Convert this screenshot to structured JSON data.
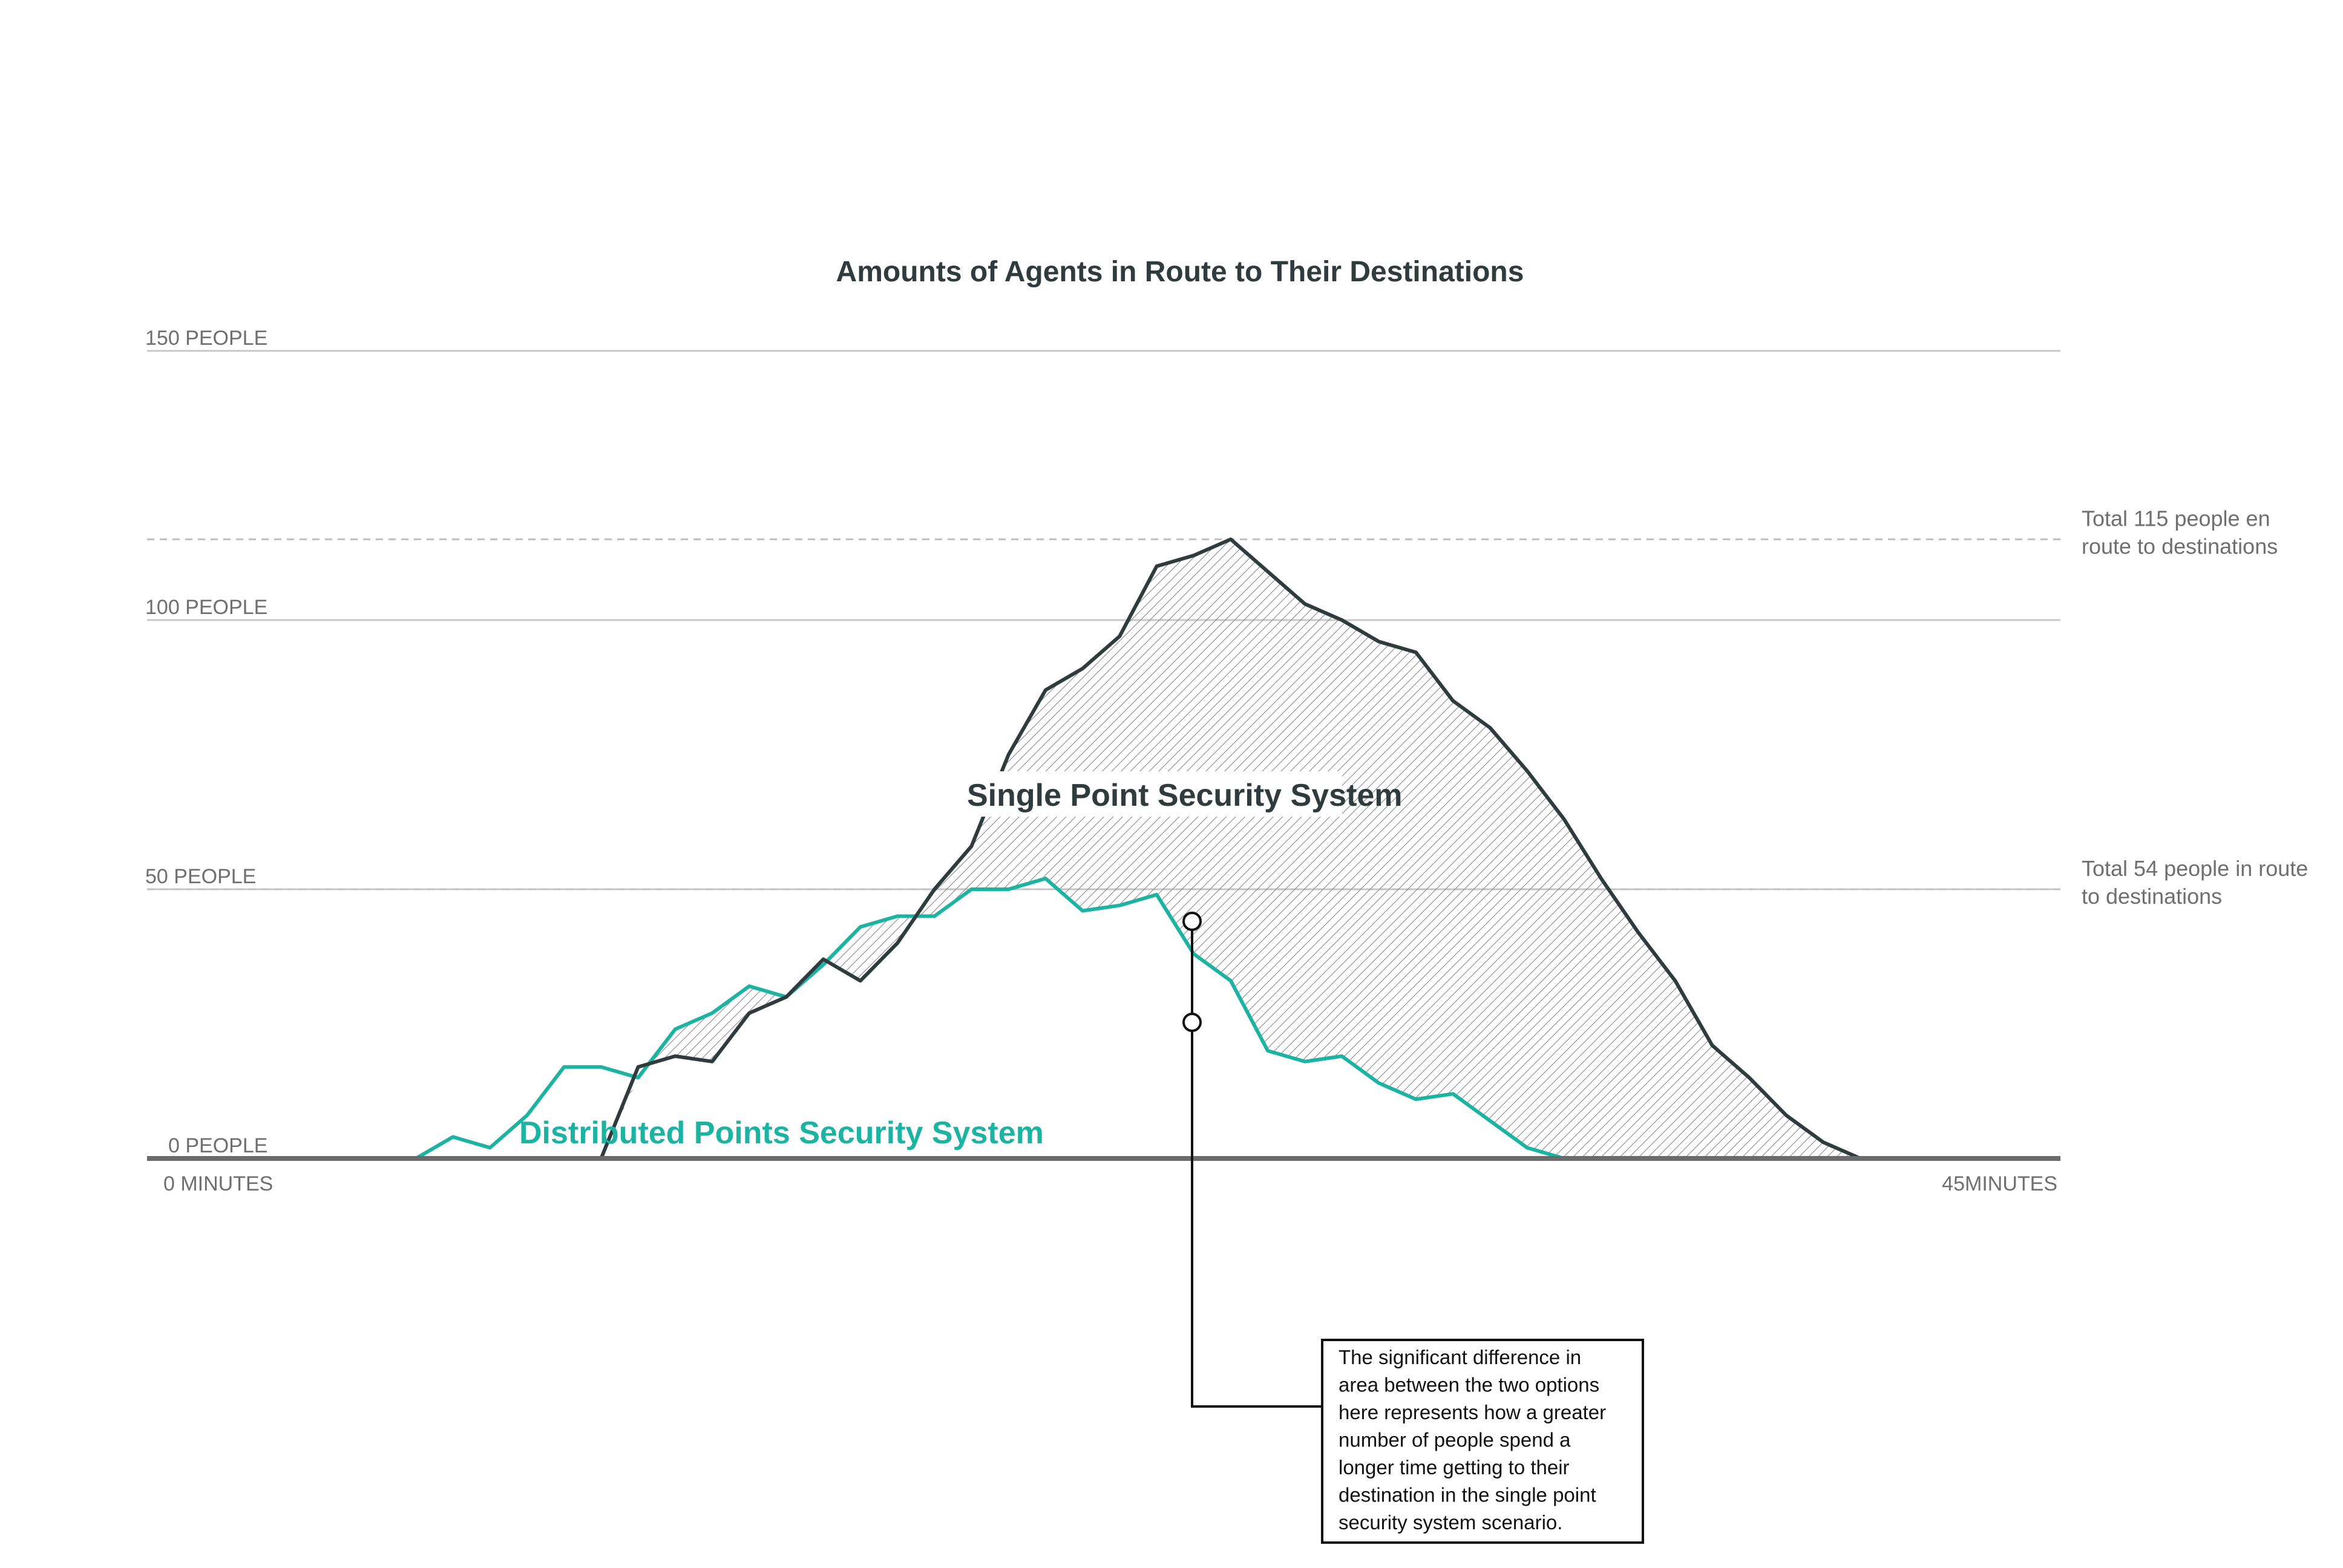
{
  "colors": {
    "single": "#2f3b3d",
    "distributed": "#1db3a3",
    "grid": "#c8c8c8",
    "axis": "#6b6b6b",
    "hatch": "#8a8a8a"
  },
  "chart_data": {
    "type": "area",
    "title": "Amounts of Agents in Route to Their Destinations",
    "x_tick_labels": [
      "0 MINUTES",
      "45MINUTES"
    ],
    "y_tick_labels": [
      "0 PEOPLE",
      "50 PEOPLE",
      "100 PEOPLE",
      "150 PEOPLE"
    ],
    "y_ticks": [
      0,
      50,
      100,
      150
    ],
    "xlim": [
      0,
      45
    ],
    "ylim": [
      0,
      150
    ],
    "grid": true,
    "x": [
      6.0,
      6.88,
      7.76,
      8.64,
      9.52,
      10.4,
      11.28,
      12.16,
      13.04,
      13.92,
      14.8,
      15.68,
      16.56,
      17.44,
      18.32,
      19.2,
      20.08,
      20.96,
      21.84,
      22.72,
      23.6,
      24.48,
      25.36,
      26.24,
      27.12,
      28.0,
      28.88,
      29.76,
      30.64,
      31.52,
      32.4,
      33.28,
      34.16,
      35.04,
      35.92,
      36.8,
      37.68,
      38.56,
      39.44,
      40.32,
      41.2
    ],
    "series": [
      {
        "name": "Single Point Security System",
        "values": [
          0,
          0,
          0,
          0,
          0,
          0,
          17,
          19,
          18,
          27,
          30,
          37,
          33,
          40,
          50,
          58,
          75,
          87,
          91,
          97,
          110,
          112,
          115,
          109,
          103,
          100,
          96,
          94,
          85,
          80,
          72,
          63,
          52,
          42,
          33,
          21,
          15,
          8,
          3,
          0,
          0
        ]
      },
      {
        "name": "Distributed Points Security System",
        "values": [
          0,
          4,
          2,
          8,
          17,
          17,
          15,
          24,
          27,
          32,
          30,
          36,
          43,
          45,
          45,
          50,
          50,
          52,
          46,
          47,
          49,
          38,
          33,
          20,
          18,
          19,
          14,
          11,
          12,
          7,
          2,
          0,
          0,
          0,
          0,
          0,
          0,
          0,
          0,
          0,
          0
        ]
      }
    ],
    "reference_lines": [
      {
        "value": 115,
        "label": "Total 115 people en route to destinations"
      },
      {
        "value": 50,
        "label": "Total 54 people in route to destinations"
      }
    ],
    "series_labels": [
      "Single Point Security System",
      "Distributed Points Security System"
    ],
    "annotation": "The significant difference in area between the two options here represents how a greater number of people spend a longer time getting to their destination in the single point security system scenario."
  }
}
